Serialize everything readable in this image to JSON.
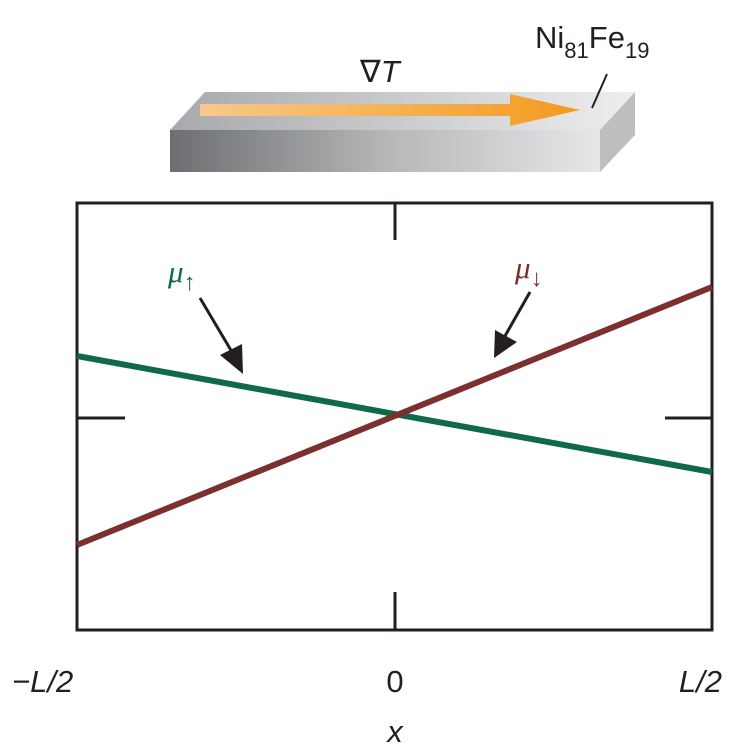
{
  "gradient": {
    "symbol": "∇",
    "variable": "T"
  },
  "material": [
    {
      "text": "Ni",
      "sub": "81"
    },
    {
      "text": "Fe",
      "sub": "19"
    }
  ],
  "labels": {
    "mu_up": {
      "text": "μ",
      "sub": "↑"
    },
    "mu_down": {
      "text": "μ",
      "sub": "↓"
    }
  },
  "x_axis": {
    "ticks": [
      "−L/2",
      "0",
      "L/2"
    ],
    "label": "x"
  }
}
